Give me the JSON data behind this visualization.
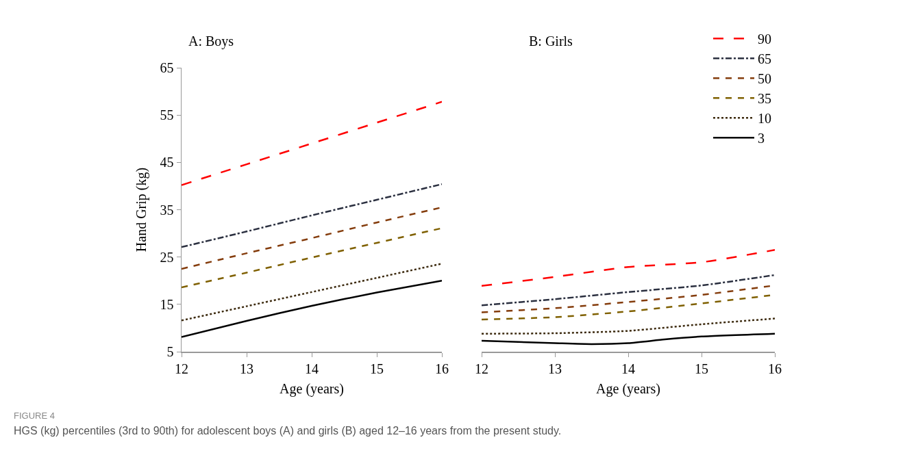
{
  "chart_data": [
    {
      "type": "line",
      "title": "A: Boys",
      "xlabel": "Age (years)",
      "ylabel": "Hand Grip (kg)",
      "x": [
        12,
        13,
        14,
        15,
        16
      ],
      "xlim": [
        12,
        16
      ],
      "xticks": [
        12,
        13,
        14,
        15,
        16
      ],
      "ylim": [
        5,
        65
      ],
      "yticks": [
        5,
        15,
        25,
        35,
        45,
        55,
        65
      ],
      "grid": false,
      "legend": false,
      "series": [
        {
          "color": "#ff0000",
          "line_style": "longdash",
          "values": [
            40.2,
            44.6,
            49.0,
            53.4,
            57.8
          ]
        },
        {
          "color": "#2b3040",
          "line_style": "dashdot",
          "values": [
            27.1,
            30.4,
            33.8,
            37.1,
            40.4
          ]
        },
        {
          "color": "#843c0c",
          "line_style": "dashed",
          "values": [
            22.5,
            25.8,
            29.0,
            32.3,
            35.5
          ]
        },
        {
          "color": "#7f6000",
          "line_style": "dashed",
          "values": [
            18.6,
            21.7,
            24.9,
            28.0,
            31.1
          ]
        },
        {
          "color": "#3d2b10",
          "line_style": "dotted",
          "values": [
            11.6,
            14.6,
            17.6,
            20.6,
            23.6
          ]
        },
        {
          "color": "#000000",
          "line_style": "solid",
          "values": [
            8.1,
            11.5,
            14.7,
            17.5,
            20.0
          ]
        }
      ],
      "annotations": [
        "FIGURE 4",
        "HGS (kg) percentiles (3rd to 90th) for adolescent boys (A) and girls (B) aged 12–16 years from the present study."
      ]
    },
    {
      "type": "line",
      "title": "B: Girls",
      "xlabel": "Age (years)",
      "x": [
        12,
        13,
        14,
        15,
        16
      ],
      "xlim": [
        12,
        16
      ],
      "xticks": [
        12,
        13,
        14,
        15,
        16
      ],
      "ylim": [
        5,
        65
      ],
      "tick_labels": "x",
      "grid": false,
      "legend": "top right",
      "series": [
        {
          "name": "90",
          "color": "#ff0000",
          "line_style": "longdash",
          "values": [
            18.9,
            20.8,
            22.9,
            23.9,
            26.5
          ]
        },
        {
          "name": "65",
          "color": "#2b3040",
          "line_style": "dashdot",
          "values": [
            14.8,
            16.1,
            17.6,
            19.0,
            21.2
          ]
        },
        {
          "name": "50",
          "color": "#843c0c",
          "line_style": "dashed",
          "values": [
            13.3,
            14.2,
            15.5,
            17.0,
            19.0
          ]
        },
        {
          "name": "35",
          "color": "#7f6000",
          "line_style": "dashed",
          "values": [
            11.8,
            12.3,
            13.5,
            15.2,
            17.0
          ]
        },
        {
          "name": "10",
          "color": "#3d2b10",
          "line_style": "dotted",
          "values": [
            8.8,
            8.9,
            9.4,
            10.8,
            12.0
          ]
        },
        {
          "name": "3",
          "color": "#000000",
          "line_style": "solid",
          "x": [
            12,
            13,
            13.5,
            14,
            14.5,
            15,
            16
          ],
          "values": [
            7.3,
            6.8,
            6.6,
            6.8,
            7.6,
            8.2,
            8.8
          ]
        }
      ]
    }
  ]
}
